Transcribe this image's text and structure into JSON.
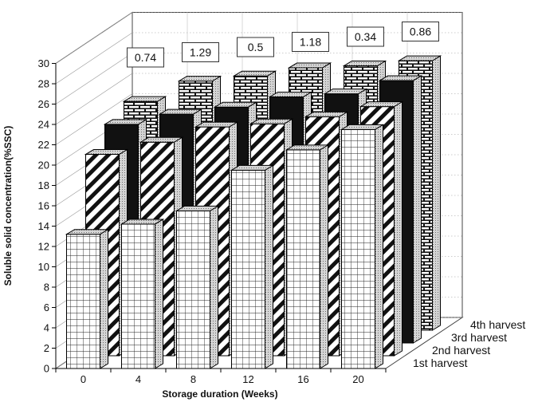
{
  "chart_data": {
    "type": "bar",
    "style": "3d-grouped",
    "xlabel": "Storage duration (Weeks)",
    "ylabel": "Soluble solid concentration(%SSC)",
    "ylim": [
      0,
      30
    ],
    "yticks": [
      0,
      2,
      4,
      6,
      8,
      10,
      12,
      14,
      16,
      18,
      20,
      22,
      24,
      26,
      28,
      30
    ],
    "categories": [
      "0",
      "4",
      "8",
      "12",
      "16",
      "20"
    ],
    "series": [
      {
        "name": "1st harvest",
        "values": [
          13.2,
          14.2,
          15.5,
          19.5,
          21.5,
          23.5
        ],
        "pattern": "grid"
      },
      {
        "name": "2nd harvest",
        "values": [
          19.8,
          21.0,
          22.5,
          22.8,
          23.5,
          24.5
        ],
        "pattern": "diagonal-stripes"
      },
      {
        "name": "3rd harvest",
        "values": [
          21.5,
          22.5,
          23.2,
          24.2,
          24.5,
          25.8
        ],
        "pattern": "solid-black"
      },
      {
        "name": "4th harvest",
        "values": [
          22.5,
          24.5,
          25.0,
          25.8,
          26.0,
          26.5
        ],
        "pattern": "brick"
      }
    ],
    "annotations": [
      "0.74",
      "1.29",
      "0.5",
      "1.18",
      "0.34",
      "0.86"
    ],
    "grid": true,
    "legend": "right"
  }
}
